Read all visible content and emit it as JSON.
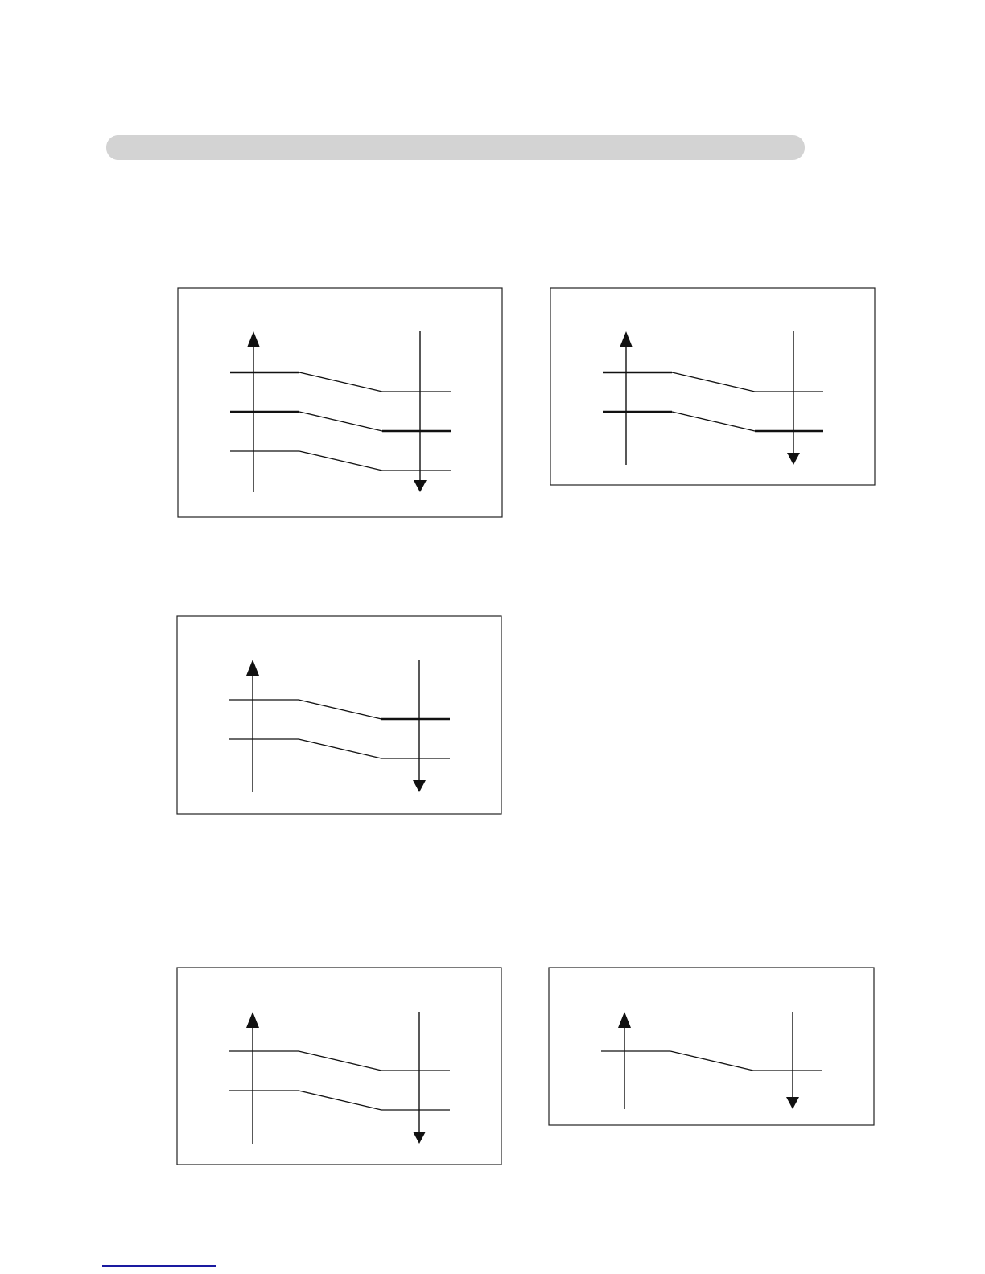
{
  "header": {
    "bar_color": "#d3d3d3"
  },
  "footer": {
    "rule_color": "#1a1aa0"
  },
  "diagrams": [
    {
      "levels": [
        {
          "left": "thick",
          "right": "thin"
        },
        {
          "left": "thick",
          "right": "thick"
        },
        {
          "left": "thin",
          "right": "thin"
        }
      ]
    },
    {
      "levels": [
        {
          "left": "thick",
          "right": "thin"
        },
        {
          "left": "thick",
          "right": "thick"
        }
      ]
    },
    {
      "levels": [
        {
          "left": "thin",
          "right": "thick"
        },
        {
          "left": "thin",
          "right": "thin"
        }
      ]
    },
    {
      "levels": [
        {
          "left": "thin",
          "right": "thin"
        },
        {
          "left": "thin",
          "right": "thin"
        }
      ]
    },
    {
      "levels": [
        {
          "left": "thin",
          "right": "thin"
        }
      ]
    }
  ]
}
